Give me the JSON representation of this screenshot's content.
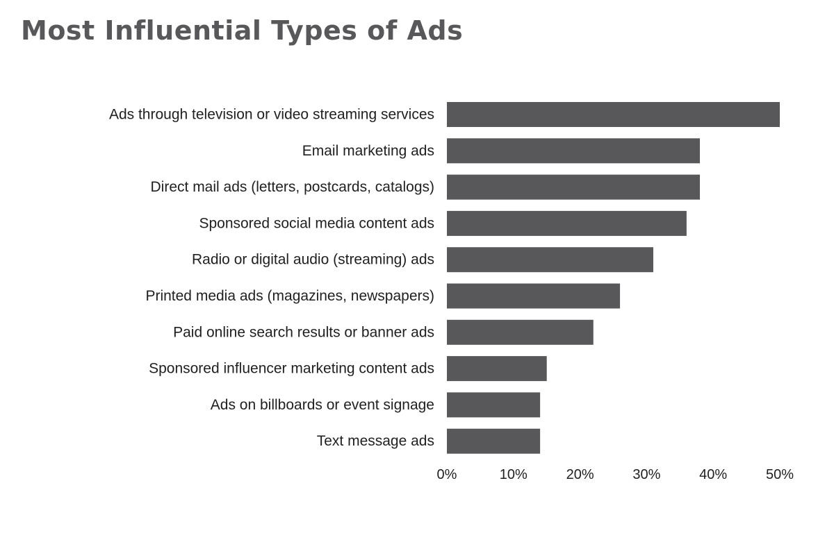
{
  "chart_data": {
    "type": "bar",
    "orientation": "horizontal",
    "title": "Most Influential Types of Ads",
    "xlabel": "",
    "ylabel": "",
    "categories": [
      "Ads through television or video streaming services",
      "Email marketing ads",
      "Direct mail ads (letters, postcards, catalogs)",
      "Sponsored social media content ads",
      "Radio or digital audio (streaming) ads",
      "Printed media ads (magazines, newspapers)",
      "Paid online search results or banner ads",
      "Sponsored influencer marketing content ads",
      "Ads on billboards or event signage",
      "Text message ads"
    ],
    "values": [
      50,
      38,
      38,
      36,
      31,
      26,
      22,
      15,
      14,
      14
    ],
    "xlim": [
      0,
      50
    ],
    "x_ticks": [
      0,
      10,
      20,
      30,
      40,
      50
    ],
    "x_tick_labels": [
      "0%",
      "10%",
      "20%",
      "30%",
      "40%",
      "50%"
    ],
    "value_unit": "percent",
    "grid": false,
    "legend": "none",
    "bar_color": "#58585a",
    "title_color": "#58585a",
    "text_color": "#1f1f1f"
  }
}
